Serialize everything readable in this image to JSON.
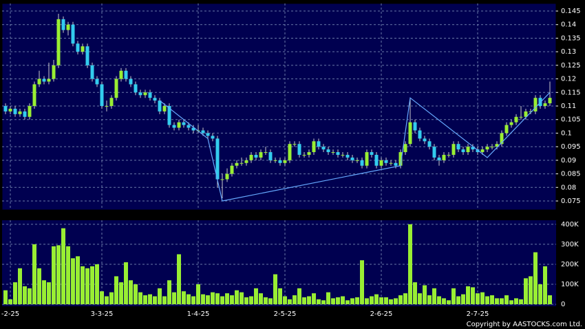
{
  "chart_data": {
    "type": "candlestick",
    "copyright": "Copyright by AASTOCKS.com Ltd.",
    "up_color": "#99ee33",
    "down_color": "#33ccee",
    "volume_color": "#99ee33",
    "zigzag_color": "#66aaff",
    "grid": true,
    "categories": [
      null,
      "-2-25",
      null,
      null,
      null,
      null,
      null,
      null,
      null,
      null,
      null,
      null,
      null,
      null,
      null,
      null,
      null,
      null,
      null,
      null,
      "3-3-25",
      null,
      null,
      null,
      null,
      null,
      null,
      null,
      null,
      null,
      null,
      null,
      null,
      null,
      null,
      null,
      null,
      null,
      null,
      null,
      "1-4-25",
      null,
      null,
      null,
      null,
      null,
      null,
      null,
      null,
      null,
      null,
      null,
      null,
      null,
      null,
      null,
      null,
      null,
      "2-5-25",
      null,
      null,
      null,
      null,
      null,
      null,
      null,
      null,
      null,
      null,
      null,
      null,
      null,
      null,
      null,
      null,
      null,
      null,
      null,
      "2-6-25",
      null,
      null,
      null,
      null,
      null,
      null,
      null,
      null,
      null,
      null,
      null,
      null,
      null,
      null,
      null,
      null,
      null,
      null,
      null,
      "2-7-25",
      null,
      null,
      null,
      null,
      null,
      null,
      null,
      null,
      null,
      null,
      null,
      null,
      null,
      null,
      null
    ],
    "ohlc": [
      [
        0.11,
        0.111,
        0.107,
        0.108
      ],
      [
        0.108,
        0.11,
        0.107,
        0.109
      ],
      [
        0.109,
        0.11,
        0.106,
        0.107
      ],
      [
        0.107,
        0.109,
        0.106,
        0.108
      ],
      [
        0.108,
        0.109,
        0.105,
        0.106
      ],
      [
        0.106,
        0.111,
        0.105,
        0.11
      ],
      [
        0.11,
        0.119,
        0.109,
        0.118
      ],
      [
        0.118,
        0.123,
        0.117,
        0.12
      ],
      [
        0.12,
        0.121,
        0.118,
        0.119
      ],
      [
        0.119,
        0.126,
        0.118,
        0.12
      ],
      [
        0.12,
        0.127,
        0.119,
        0.125
      ],
      [
        0.125,
        0.144,
        0.124,
        0.142
      ],
      [
        0.142,
        0.143,
        0.137,
        0.138
      ],
      [
        0.138,
        0.141,
        0.136,
        0.14
      ],
      [
        0.14,
        0.141,
        0.132,
        0.133
      ],
      [
        0.133,
        0.134,
        0.129,
        0.13
      ],
      [
        0.13,
        0.133,
        0.129,
        0.132
      ],
      [
        0.132,
        0.133,
        0.124,
        0.125
      ],
      [
        0.125,
        0.126,
        0.119,
        0.12
      ],
      [
        0.12,
        0.121,
        0.117,
        0.118
      ],
      [
        0.118,
        0.119,
        0.109,
        0.11
      ],
      [
        0.11,
        0.112,
        0.108,
        0.11
      ],
      [
        0.11,
        0.114,
        0.109,
        0.113
      ],
      [
        0.113,
        0.121,
        0.112,
        0.12
      ],
      [
        0.12,
        0.124,
        0.119,
        0.123
      ],
      [
        0.123,
        0.124,
        0.119,
        0.12
      ],
      [
        0.12,
        0.121,
        0.117,
        0.118
      ],
      [
        0.118,
        0.119,
        0.114,
        0.115
      ],
      [
        0.115,
        0.116,
        0.113,
        0.114
      ],
      [
        0.114,
        0.116,
        0.113,
        0.115
      ],
      [
        0.115,
        0.116,
        0.112,
        0.113
      ],
      [
        0.113,
        0.114,
        0.111,
        0.112
      ],
      [
        0.112,
        0.113,
        0.107,
        0.108
      ],
      [
        0.108,
        0.111,
        0.107,
        0.11
      ],
      [
        0.11,
        0.111,
        0.102,
        0.103
      ],
      [
        0.103,
        0.104,
        0.101,
        0.102
      ],
      [
        0.102,
        0.105,
        0.101,
        0.104
      ],
      [
        0.104,
        0.105,
        0.102,
        0.103
      ],
      [
        0.103,
        0.104,
        0.101,
        0.102
      ],
      [
        0.102,
        0.103,
        0.1,
        0.101
      ],
      [
        0.101,
        0.103,
        0.1,
        0.101
      ],
      [
        0.101,
        0.102,
        0.099,
        0.1
      ],
      [
        0.1,
        0.101,
        0.098,
        0.099
      ],
      [
        0.099,
        0.1,
        0.097,
        0.098
      ],
      [
        0.098,
        0.099,
        0.08,
        0.083
      ],
      [
        0.083,
        0.085,
        0.076,
        0.083
      ],
      [
        0.083,
        0.087,
        0.082,
        0.085
      ],
      [
        0.085,
        0.089,
        0.084,
        0.088
      ],
      [
        0.088,
        0.09,
        0.087,
        0.089
      ],
      [
        0.089,
        0.091,
        0.088,
        0.089
      ],
      [
        0.089,
        0.091,
        0.088,
        0.09
      ],
      [
        0.09,
        0.093,
        0.089,
        0.092
      ],
      [
        0.092,
        0.093,
        0.09,
        0.091
      ],
      [
        0.091,
        0.094,
        0.09,
        0.093
      ],
      [
        0.093,
        0.095,
        0.092,
        0.093
      ],
      [
        0.093,
        0.094,
        0.089,
        0.09
      ],
      [
        0.09,
        0.091,
        0.089,
        0.09
      ],
      [
        0.09,
        0.091,
        0.088,
        0.089
      ],
      [
        0.089,
        0.091,
        0.088,
        0.09
      ],
      [
        0.09,
        0.097,
        0.089,
        0.096
      ],
      [
        0.096,
        0.097,
        0.095,
        0.096
      ],
      [
        0.096,
        0.097,
        0.091,
        0.092
      ],
      [
        0.092,
        0.093,
        0.091,
        0.092
      ],
      [
        0.092,
        0.094,
        0.091,
        0.093
      ],
      [
        0.093,
        0.098,
        0.092,
        0.097
      ],
      [
        0.097,
        0.098,
        0.094,
        0.095
      ],
      [
        0.095,
        0.096,
        0.093,
        0.094
      ],
      [
        0.094,
        0.095,
        0.092,
        0.093
      ],
      [
        0.093,
        0.094,
        0.092,
        0.093
      ],
      [
        0.093,
        0.094,
        0.091,
        0.092
      ],
      [
        0.092,
        0.093,
        0.091,
        0.092
      ],
      [
        0.092,
        0.093,
        0.09,
        0.091
      ],
      [
        0.091,
        0.092,
        0.089,
        0.09
      ],
      [
        0.09,
        0.091,
        0.089,
        0.09
      ],
      [
        0.09,
        0.091,
        0.087,
        0.088
      ],
      [
        0.088,
        0.094,
        0.087,
        0.093
      ],
      [
        0.093,
        0.094,
        0.091,
        0.092
      ],
      [
        0.092,
        0.093,
        0.087,
        0.088
      ],
      [
        0.088,
        0.091,
        0.087,
        0.09
      ],
      [
        0.09,
        0.091,
        0.088,
        0.089
      ],
      [
        0.089,
        0.09,
        0.088,
        0.089
      ],
      [
        0.089,
        0.09,
        0.087,
        0.088
      ],
      [
        0.088,
        0.094,
        0.087,
        0.093
      ],
      [
        0.093,
        0.097,
        0.092,
        0.096
      ],
      [
        0.096,
        0.113,
        0.095,
        0.104
      ],
      [
        0.104,
        0.105,
        0.1,
        0.101
      ],
      [
        0.101,
        0.102,
        0.097,
        0.098
      ],
      [
        0.098,
        0.099,
        0.096,
        0.097
      ],
      [
        0.097,
        0.098,
        0.094,
        0.095
      ],
      [
        0.095,
        0.096,
        0.09,
        0.091
      ],
      [
        0.091,
        0.092,
        0.088,
        0.09
      ],
      [
        0.09,
        0.093,
        0.089,
        0.092
      ],
      [
        0.092,
        0.093,
        0.091,
        0.092
      ],
      [
        0.092,
        0.097,
        0.091,
        0.096
      ],
      [
        0.096,
        0.097,
        0.093,
        0.094
      ],
      [
        0.094,
        0.095,
        0.092,
        0.093
      ],
      [
        0.093,
        0.096,
        0.092,
        0.095
      ],
      [
        0.095,
        0.096,
        0.093,
        0.094
      ],
      [
        0.094,
        0.095,
        0.092,
        0.093
      ],
      [
        0.093,
        0.095,
        0.092,
        0.094
      ],
      [
        0.094,
        0.096,
        0.093,
        0.095
      ],
      [
        0.095,
        0.096,
        0.094,
        0.095
      ],
      [
        0.095,
        0.097,
        0.094,
        0.096
      ],
      [
        0.096,
        0.101,
        0.095,
        0.1
      ],
      [
        0.1,
        0.104,
        0.099,
        0.103
      ],
      [
        0.103,
        0.105,
        0.102,
        0.104
      ],
      [
        0.104,
        0.107,
        0.103,
        0.106
      ],
      [
        0.106,
        0.11,
        0.105,
        0.106
      ],
      [
        0.106,
        0.109,
        0.105,
        0.108
      ],
      [
        0.108,
        0.109,
        0.107,
        0.108
      ],
      [
        0.108,
        0.114,
        0.107,
        0.113
      ],
      [
        0.113,
        0.114,
        0.109,
        0.11
      ],
      [
        0.11,
        0.112,
        0.109,
        0.111
      ],
      [
        0.111,
        0.119,
        0.11,
        0.113
      ]
    ],
    "volume": [
      70000,
      25000,
      110000,
      180000,
      90000,
      80000,
      300000,
      180000,
      120000,
      110000,
      290000,
      295000,
      380000,
      290000,
      230000,
      240000,
      190000,
      180000,
      190000,
      200000,
      65000,
      40000,
      60000,
      140000,
      110000,
      210000,
      120000,
      100000,
      60000,
      45000,
      50000,
      40000,
      80000,
      40000,
      120000,
      60000,
      250000,
      65000,
      50000,
      40000,
      100000,
      50000,
      45000,
      60000,
      55000,
      40000,
      55000,
      45000,
      70000,
      60000,
      35000,
      40000,
      80000,
      55000,
      35000,
      30000,
      150000,
      80000,
      40000,
      25000,
      45000,
      80000,
      35000,
      40000,
      55000,
      25000,
      20000,
      60000,
      30000,
      35000,
      40000,
      20000,
      30000,
      35000,
      220000,
      30000,
      40000,
      50000,
      35000,
      35000,
      25000,
      30000,
      45000,
      55000,
      400000,
      110000,
      55000,
      95000,
      45000,
      80000,
      40000,
      30000,
      20000,
      80000,
      40000,
      50000,
      90000,
      85000,
      55000,
      60000,
      40000,
      45000,
      30000,
      30000,
      45000,
      20000,
      30000,
      25000,
      130000,
      140000,
      260000,
      100000,
      190000,
      45000
    ],
    "zigzag": {
      "x": [
        32,
        42,
        45,
        82,
        84,
        100,
        113
      ],
      "values": [
        0.112,
        0.098,
        0.075,
        0.088,
        0.113,
        0.091,
        0.115
      ]
    },
    "ylim": [
      0.0717,
      0.1478
    ],
    "yticks": [
      0.075,
      0.08,
      0.085,
      0.09,
      0.095,
      0.1,
      0.105,
      0.11,
      0.115,
      0.12,
      0.125,
      0.13,
      0.135,
      0.14,
      0.145
    ],
    "volume_ylim": [
      -10000,
      420000
    ],
    "volume_yticks": [
      0,
      {
        "value": 100000,
        "label": "100K"
      },
      {
        "value": 200000,
        "label": "200K"
      },
      {
        "value": 300000,
        "label": "300K"
      },
      {
        "value": 400000,
        "label": "400K"
      }
    ]
  }
}
